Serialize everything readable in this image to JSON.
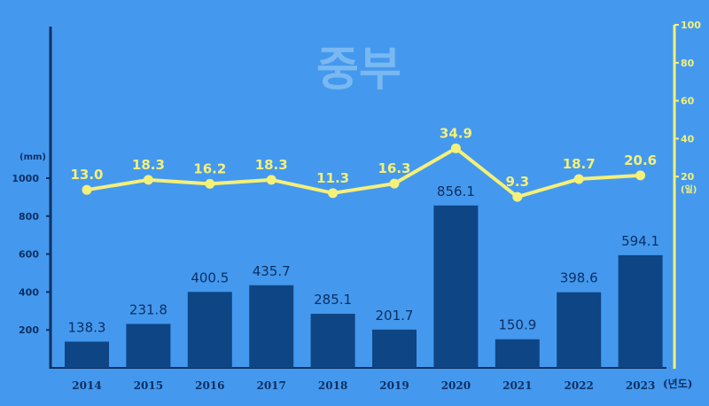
{
  "chart_data": {
    "type": "bar",
    "title": "중부",
    "categories": [
      "2014",
      "2015",
      "2016",
      "2017",
      "2018",
      "2019",
      "2020",
      "2021",
      "2022",
      "2023"
    ],
    "series": [
      {
        "type": "bar",
        "unit": "(mm)",
        "axis": "left",
        "values": [
          138.3,
          231.8,
          400.5,
          435.7,
          285.1,
          201.7,
          856.1,
          150.9,
          398.6,
          594.1
        ],
        "labels": [
          "138.3",
          "231.8",
          "400.5",
          "435.7",
          "285.1",
          "201.7",
          "856.1",
          "150.9",
          "398.6",
          "594.1"
        ]
      },
      {
        "type": "line",
        "unit": "(일)",
        "axis": "right",
        "values": [
          13.0,
          18.3,
          16.2,
          18.3,
          11.3,
          16.3,
          34.9,
          9.3,
          18.7,
          20.6
        ],
        "labels": [
          "13.0",
          "18.3",
          "16.2",
          "18.3",
          "11.3",
          "16.3",
          "34.9",
          "9.3",
          "18.7",
          "20.6"
        ]
      }
    ],
    "left_axis": {
      "ticks": [
        200,
        400,
        600,
        800,
        1000
      ],
      "ylim": [
        0,
        1000
      ],
      "unit": "(mm)"
    },
    "right_axis": {
      "ticks": [
        20,
        40,
        60,
        80,
        100
      ],
      "ylim": [
        0,
        100
      ],
      "unit": "(일)"
    },
    "x_unit": "(년도)",
    "colors": {
      "background": "#4499ee",
      "bar": "#0e4584",
      "line": "#f5f078",
      "axis_left": "#0d2f63",
      "axis_right": "#f5f078",
      "title": "#7ab8f2"
    },
    "grid": false,
    "legend": "none"
  }
}
